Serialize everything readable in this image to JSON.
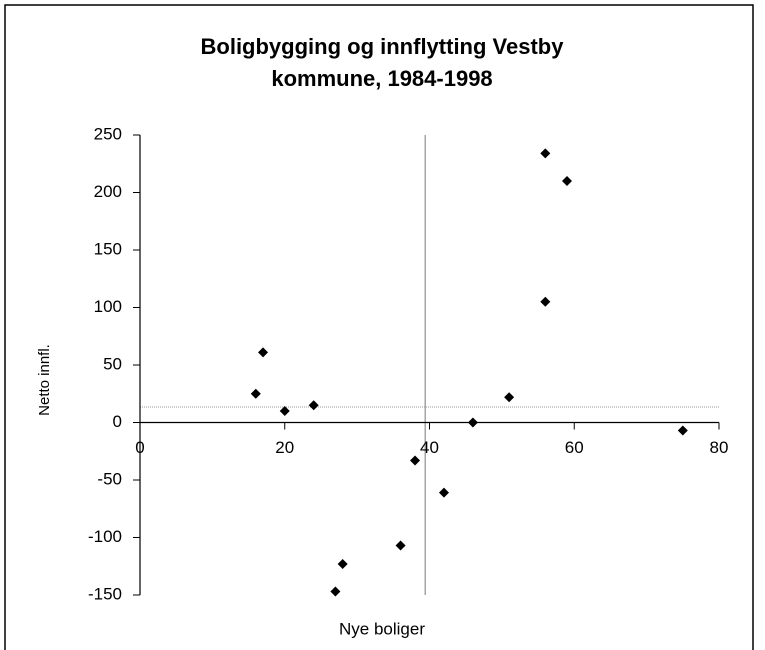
{
  "chart_data": {
    "type": "scatter",
    "title": [
      "Boligbygging og innflytting Vestby",
      "kommune, 1984-1998"
    ],
    "xlabel": "Nye boliger",
    "ylabel": "Netto innfl.",
    "x": [
      16,
      17,
      20,
      24,
      27,
      28,
      36,
      38,
      42,
      46,
      51,
      56,
      56,
      59,
      75
    ],
    "values": [
      25,
      61,
      10,
      15,
      -147,
      -123,
      -107,
      -33,
      -61,
      0,
      22,
      234,
      105,
      210,
      -7
    ],
    "color": "#000000",
    "xlim": [
      0,
      80
    ],
    "xticks": [
      0,
      20,
      40,
      60,
      80
    ],
    "ylim": [
      -150,
      250
    ],
    "yticks": [
      -150,
      -100,
      -50,
      0,
      50,
      100,
      150,
      200,
      250
    ],
    "vlines": [
      39.4
    ],
    "hlines": [
      13.5
    ]
  }
}
